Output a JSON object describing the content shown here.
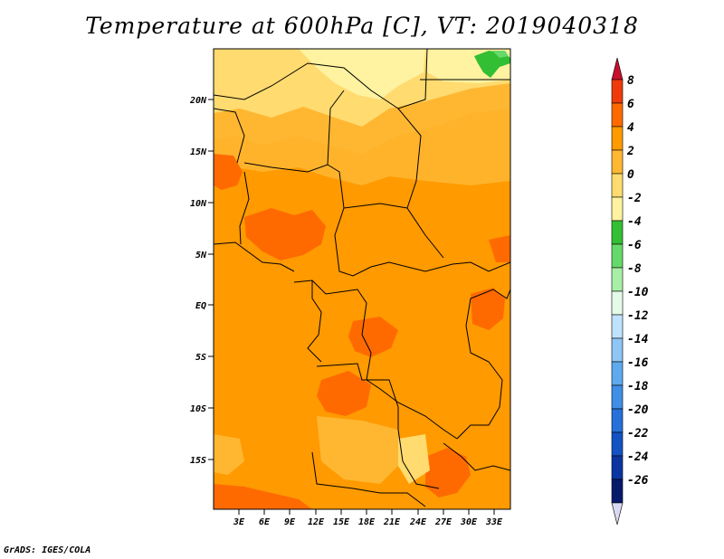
{
  "title": "Temperature at 600hPa [C], VT: 2019040318",
  "footer": "GrADS: IGES/COLA",
  "axes": {
    "lat_labels": [
      "20N",
      "15N",
      "10N",
      "5N",
      "EQ",
      "5S",
      "10S",
      "15S"
    ],
    "lon_labels": [
      "3E",
      "6E",
      "9E",
      "12E",
      "15E",
      "18E",
      "21E",
      "24E",
      "27E",
      "30E",
      "33E"
    ]
  },
  "colorbar": {
    "labels": [
      "8",
      "6",
      "4",
      "2",
      "0",
      "-2",
      "-4",
      "-6",
      "-8",
      "-10",
      "-12",
      "-14",
      "-16",
      "-18",
      "-20",
      "-22",
      "-24",
      "-26"
    ],
    "colors": [
      "#c8102e",
      "#ef3b0c",
      "#ff6a00",
      "#ff9a00",
      "#ffb732",
      "#ffdb70",
      "#fff2a0",
      "#33bf33",
      "#66d96b",
      "#a8efa6",
      "#e4fbe8",
      "#bfe3ff",
      "#8ec6f5",
      "#5fa9ef",
      "#3f8fe6",
      "#2670da",
      "#1352c2",
      "#0b35a0",
      "#061a6b",
      "#d9d9f2"
    ]
  },
  "legend_colors": {
    "base": "#ff9a00",
    "warm": "#ff6a00",
    "cool": "#ffb732",
    "cooler": "#ffdb70",
    "coolest": "#fff2a0",
    "green": "#33bf33",
    "border": "#000000"
  }
}
